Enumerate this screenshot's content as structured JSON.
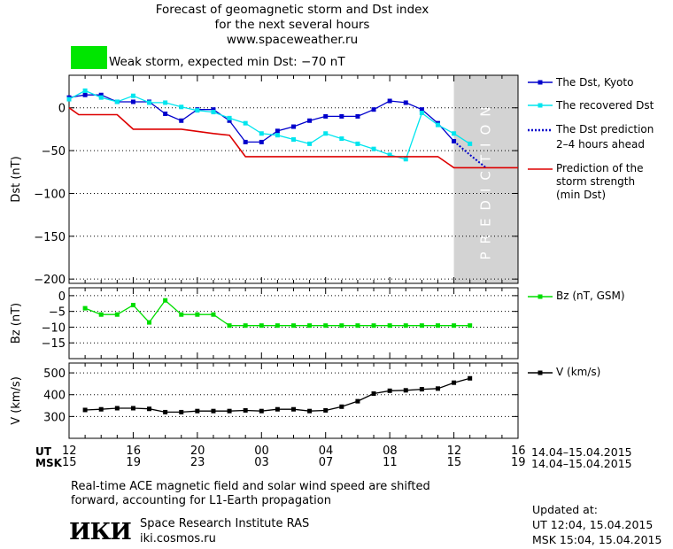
{
  "header": {
    "title_line1": "Forecast of geomagnetic storm and Dst index",
    "title_line2": "for the next several hours",
    "title_line3": "www.spaceweather.ru",
    "status_text": "Weak storm, expected min Dst: −70 nT",
    "status_color": "#00e600"
  },
  "legend": {
    "dst_kyoto": "The Dst, Kyoto",
    "dst_recovered": "The recovered Dst",
    "dst_prediction_l1": "The Dst prediction",
    "dst_prediction_l2": "2–4 hours ahead",
    "strength_l1": "Prediction of the",
    "strength_l2": "storm strength",
    "strength_l3": "(min Dst)",
    "bz": "Bz (nT, GSM)",
    "v": "V (km/s)"
  },
  "prediction_label": "PREDICTION",
  "time_axis": {
    "ut_label": "UT",
    "msk_label": "MSK",
    "ut_ticks": [
      "12",
      "16",
      "20",
      "00",
      "04",
      "08",
      "12",
      "16"
    ],
    "msk_ticks": [
      "15",
      "19",
      "23",
      "03",
      "07",
      "11",
      "15",
      "19"
    ],
    "ut_range": "14.04–15.04.2015",
    "msk_range": "14.04–15.04.2015"
  },
  "footer": {
    "note_line1": "Real-time ACE magnetic field and solar wind speed are shifted",
    "note_line2": "forward, accounting for L1-Earth propagation",
    "logo_text": "ИКИ",
    "institute": "Space Research Institute RAS",
    "site": "iki.cosmos.ru",
    "updated_label": "Updated at:",
    "updated_ut": "UT   12:04, 15.04.2015",
    "updated_msk": "MSK 15:04, 15.04.2015"
  },
  "colors": {
    "kyoto": "#0000cc",
    "recovered": "#00e5ee",
    "strength": "#dd0000",
    "bz": "#00dd00",
    "v": "#000000",
    "prediction_band": "#d3d3d3"
  },
  "chart_data": [
    {
      "type": "line",
      "ylabel": "Dst (nT)",
      "ylim": [
        -205,
        38
      ],
      "yticks": [
        0,
        -50,
        -100,
        -150,
        -200
      ],
      "ytick_labels": [
        "0",
        "−50",
        "−100",
        "−150",
        "−200"
      ],
      "xlim": [
        12,
        40
      ],
      "prediction_start": 36,
      "series": [
        {
          "name": "The Dst, Kyoto",
          "x": [
            12,
            13,
            14,
            15,
            16,
            17,
            18,
            19,
            20,
            21,
            22,
            23,
            24,
            25,
            26,
            27,
            28,
            29,
            30,
            31,
            32,
            33,
            34,
            35,
            36
          ],
          "y": [
            12,
            15,
            15,
            7,
            7,
            7,
            -7,
            -15,
            -2,
            -2,
            -15,
            -40,
            -40,
            -27,
            -22,
            -15,
            -10,
            -10,
            -10,
            -2,
            8,
            6,
            -2,
            -18,
            -39
          ]
        },
        {
          "name": "The recovered Dst",
          "x": [
            12,
            13,
            14,
            15,
            16,
            17,
            18,
            19,
            20,
            21,
            22,
            23,
            24,
            25,
            26,
            27,
            28,
            29,
            30,
            31,
            32,
            33,
            34,
            35,
            36,
            37
          ],
          "y": [
            10,
            20,
            12,
            7,
            14,
            6,
            6,
            1,
            -3,
            -5,
            -12,
            -18,
            -30,
            -32,
            -37,
            -42,
            -30,
            -36,
            -42,
            -48,
            -55,
            -60,
            -6,
            -20,
            -30,
            -42
          ]
        },
        {
          "name": "The Dst prediction 2–4 hours ahead",
          "x": [
            36,
            37,
            38
          ],
          "y": [
            -39,
            -55,
            -70
          ]
        },
        {
          "name": "Prediction of the storm strength (min Dst)",
          "step": true,
          "x": [
            12,
            12.6,
            15,
            16,
            19,
            21,
            22,
            23,
            34,
            35,
            36,
            40
          ],
          "y": [
            0,
            -8,
            -8,
            -25,
            -25,
            -30,
            -32,
            -57,
            -57,
            -57,
            -70,
            -70
          ]
        }
      ]
    },
    {
      "type": "line",
      "ylabel": "Bz (nT)",
      "ylim": [
        -20,
        2.5
      ],
      "yticks": [
        0,
        -5,
        -10,
        -15
      ],
      "ytick_labels": [
        "0",
        "−5",
        "−10",
        "−15"
      ],
      "xlim": [
        12,
        40
      ],
      "series": [
        {
          "name": "Bz (nT, GSM)",
          "x": [
            13,
            14,
            15,
            16,
            17,
            18,
            19,
            20,
            21,
            22,
            23,
            24,
            25,
            26,
            27,
            28,
            29,
            30,
            31,
            32,
            33,
            34,
            35,
            36,
            37
          ],
          "y": [
            -4,
            -6,
            -6,
            -3,
            -8.5,
            -1.5,
            -6,
            -6,
            -6,
            -9.5,
            -9.5,
            -9.5,
            -9.5,
            -9.5,
            -9.5,
            -9.5,
            -9.5,
            -9.5,
            -9.5,
            -9.5,
            -9.5,
            -9.5,
            -9.5,
            -9.5,
            -9.5
          ]
        }
      ]
    },
    {
      "type": "line",
      "ylabel": "V (km/s)",
      "ylim": [
        200,
        545
      ],
      "yticks": [
        300,
        400,
        500
      ],
      "ytick_labels": [
        "300",
        "400",
        "500"
      ],
      "xlim": [
        12,
        40
      ],
      "series": [
        {
          "name": "V (km/s)",
          "x": [
            13,
            14,
            15,
            16,
            17,
            18,
            19,
            20,
            21,
            22,
            23,
            24,
            25,
            26,
            27,
            28,
            29,
            30,
            31,
            32,
            33,
            34,
            35,
            36,
            37
          ],
          "y": [
            330,
            333,
            338,
            338,
            335,
            320,
            320,
            325,
            325,
            325,
            328,
            325,
            333,
            333,
            325,
            328,
            345,
            370,
            405,
            418,
            420,
            425,
            428,
            455,
            475
          ]
        }
      ]
    }
  ]
}
